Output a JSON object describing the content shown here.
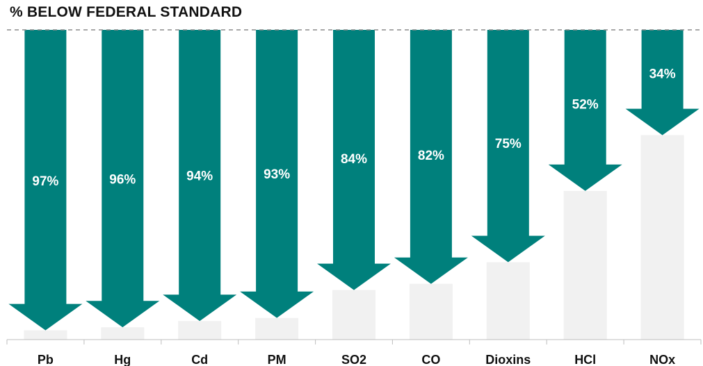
{
  "chart_data": {
    "type": "bar",
    "title": "% BELOW FEDERAL STANDARD",
    "categories": [
      "Pb",
      "Hg",
      "Cd",
      "PM",
      "SO2",
      "CO",
      "Dioxins",
      "HCl",
      "NOx"
    ],
    "values": [
      97,
      96,
      94,
      93,
      84,
      82,
      75,
      52,
      34
    ],
    "value_labels": [
      "97%",
      "96%",
      "94%",
      "93%",
      "84%",
      "82%",
      "75%",
      "52%",
      "34%"
    ],
    "ylim": [
      0,
      100
    ],
    "grid": false,
    "reference_line": "federal standard (100%)",
    "colors": {
      "arrow": "#00807C",
      "remaining_bar": "#F1F1F1",
      "arrow_label": "#FFFFFF",
      "category_label": "#111111",
      "reference_line": "#8A8A8A",
      "axis": "#BDBDBD"
    }
  }
}
